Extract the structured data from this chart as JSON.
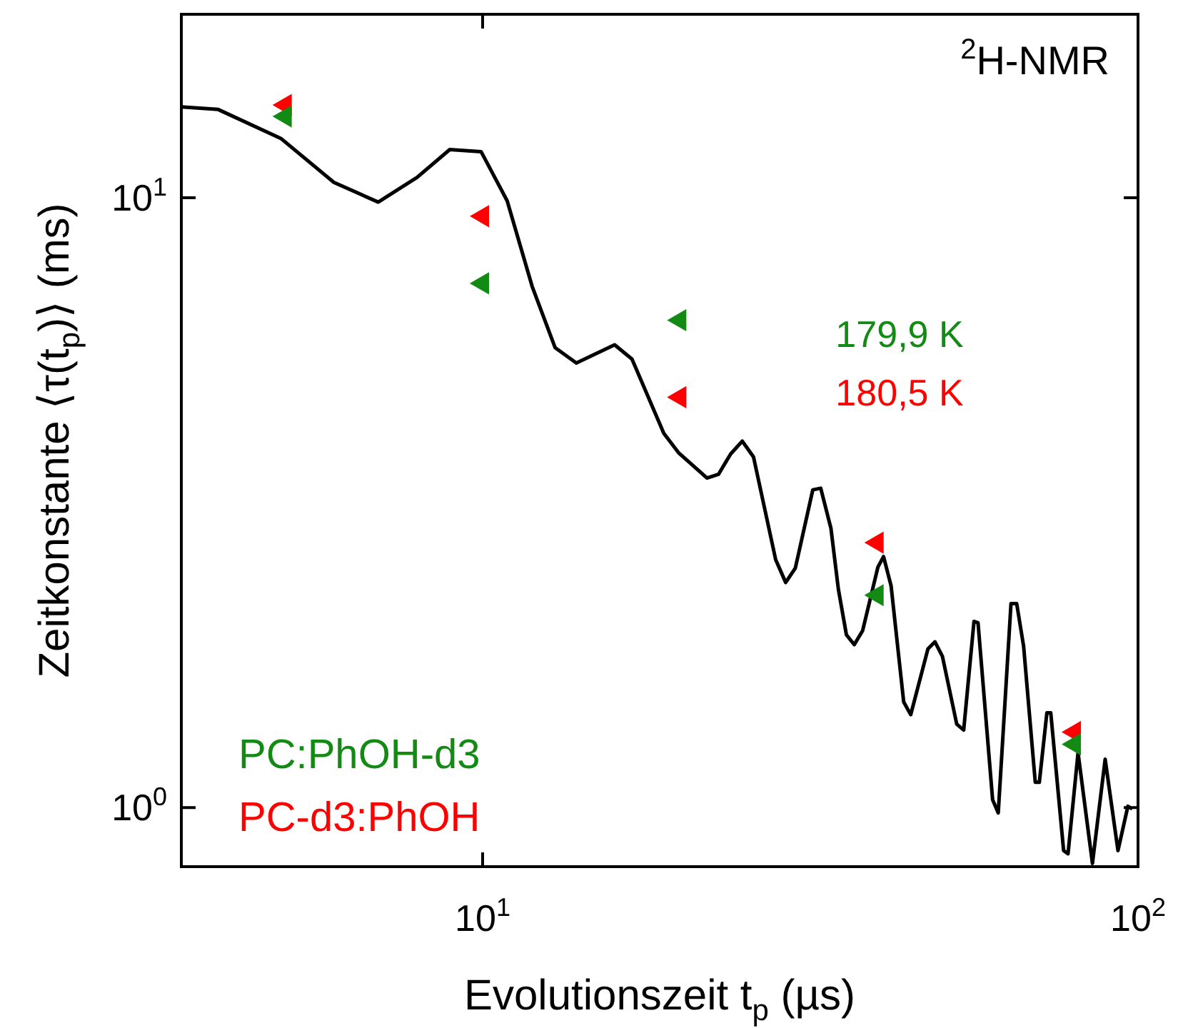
{
  "chart_data": {
    "type": "line",
    "xlabel": "Evolutionszeit t$_{p}$ (µs)",
    "ylabel": "Zeitkonstante ⟨τ(t$_{p}$)⟩ (ms)",
    "log": "xy",
    "grid": false,
    "legend": "bottom left",
    "xlim": [
      3.47,
      100
    ],
    "ylim": [
      0.8,
      20
    ],
    "xticks": [
      {
        "value": 10,
        "label": "10$^{1}$"
      },
      {
        "value": 100,
        "label": "10$^{2}$"
      }
    ],
    "yticks": [
      {
        "value": 1,
        "label": "10$^{0}$"
      },
      {
        "value": 10,
        "label": "10$^{1}$"
      }
    ],
    "annotations": [
      "179,9 K",
      "180,5 K",
      "$^{2}$H-NMR"
    ],
    "series": [
      {
        "name": "PC:PhOH-d3",
        "type": "scatter",
        "marker": "triangle",
        "color": "#138a13",
        "x": [
          5,
          10,
          20,
          40,
          80
        ],
        "values": [
          13.6,
          7.24,
          6.3,
          2.23,
          1.27
        ]
      },
      {
        "name": "PC-d3:PhOH",
        "type": "scatter",
        "marker": "triangle",
        "color": "#ff0000",
        "x": [
          5,
          10,
          20,
          40,
          80
        ],
        "values": [
          14.2,
          9.33,
          4.71,
          2.72,
          1.33
        ]
      },
      {
        "marker": "none",
        "line_style": "solid",
        "color": "#000000",
        "x": [
          3.47,
          3.95,
          4.93,
          5.93,
          6.93,
          7.94,
          8.91,
          9.95,
          10.9,
          11.9,
          12.9,
          13.9,
          15.9,
          16.9,
          18.9,
          19.9,
          22.0,
          22.9,
          23.9,
          24.9,
          25.9,
          28.0,
          29.0,
          30.0,
          31.9,
          32.8,
          34.0,
          34.9,
          35.9,
          36.9,
          38.0,
          40.1,
          40.9,
          42.0,
          43.9,
          45.0,
          47.8,
          49.0,
          50.3,
          52.9,
          54.2,
          56.2,
          57.0,
          60.0,
          61.2,
          64.0,
          65.3,
          66.9,
          69.7,
          70.7,
          72.6,
          73.6,
          77.0,
          78.2,
          81.0,
          85.2,
          89.1,
          93.2,
          96.5,
          98.0
        ],
        "values": [
          14.1,
          13.96,
          12.5,
          10.6,
          9.84,
          10.8,
          12.0,
          11.9,
          9.89,
          7.16,
          5.68,
          5.36,
          5.74,
          5.44,
          4.11,
          3.82,
          3.47,
          3.52,
          3.8,
          3.99,
          3.76,
          2.55,
          2.34,
          2.47,
          3.32,
          3.34,
          2.87,
          2.28,
          1.92,
          1.85,
          1.95,
          2.48,
          2.58,
          2.31,
          1.49,
          1.42,
          1.82,
          1.87,
          1.77,
          1.37,
          1.34,
          2.02,
          2.01,
          1.03,
          0.98,
          2.16,
          2.16,
          1.84,
          1.1,
          1.1,
          1.43,
          1.43,
          0.85,
          0.84,
          1.23,
          0.81,
          1.2,
          0.85,
          1.005,
          0.995
        ]
      }
    ]
  }
}
